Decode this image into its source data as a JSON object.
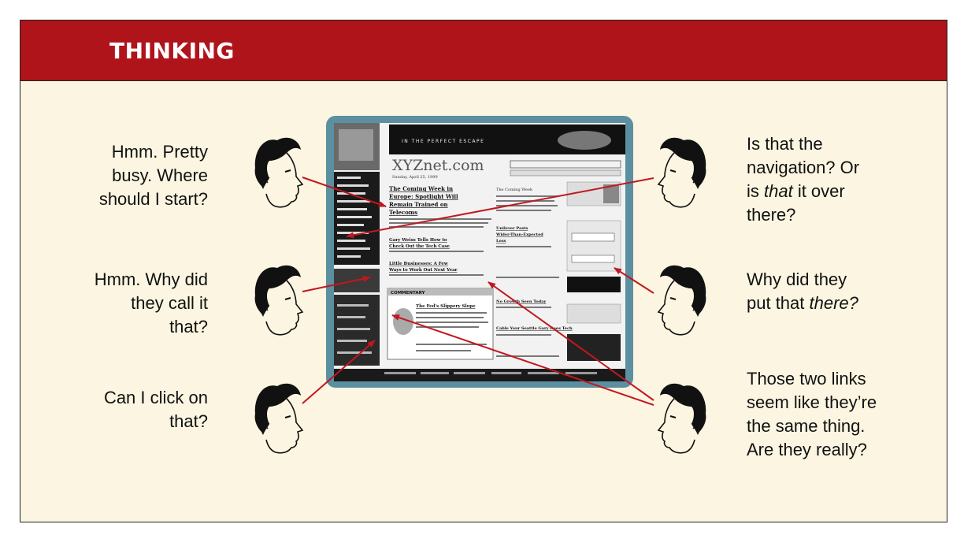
{
  "banner": {
    "title": "THINKING"
  },
  "thoughts": {
    "left_1": [
      "Hmm. Pretty",
      "busy. Where",
      "should I start?"
    ],
    "left_2": [
      "Hmm. Why did",
      "they call it",
      "that?"
    ],
    "left_3": [
      "Can I click on",
      "that?"
    ],
    "right_1": {
      "l1": "Is that the",
      "l2": "navigation? Or",
      "l3_em": "that",
      "l3_pre": "is ",
      "l3_post": " it over",
      "l4": "there?"
    },
    "right_2": {
      "l1": "Why did they",
      "l2_pre": "put that ",
      "l2_em": "there?"
    },
    "right_3": [
      "Those two links",
      "seem like they’re",
      "the same thing.",
      "Are they really?"
    ]
  },
  "screenshot": {
    "banner_ad": "IN THE PERFECT ESCAPE",
    "logo": "XYZnet.com",
    "date": "Sunday, April 25, 1999",
    "headline": "The Coming Week in Europe: Spotlight Will Remain Trained on Telecoms",
    "story_2": "Gary Weiss Tells How to Check Out the Tech Case",
    "story_3": "Little Businesses: A Few Sensible Ways to Work Out the Next Year",
    "commentary": "COMMENTARY",
    "story_4": "The Fed's Slippery Slope",
    "col2_head": "The Coming Week",
    "col2_story": "Unilever Posts Wider-Than-Expected Loss",
    "col2_story2": "No Growth Seen Today",
    "col2_story3": "Cable Your Seattle Gary Goes Tech"
  },
  "colors": {
    "banner": "#b0141b",
    "panel": "#fbf5e1",
    "arrow": "#c01820",
    "monitor": "#5c8fa0"
  }
}
